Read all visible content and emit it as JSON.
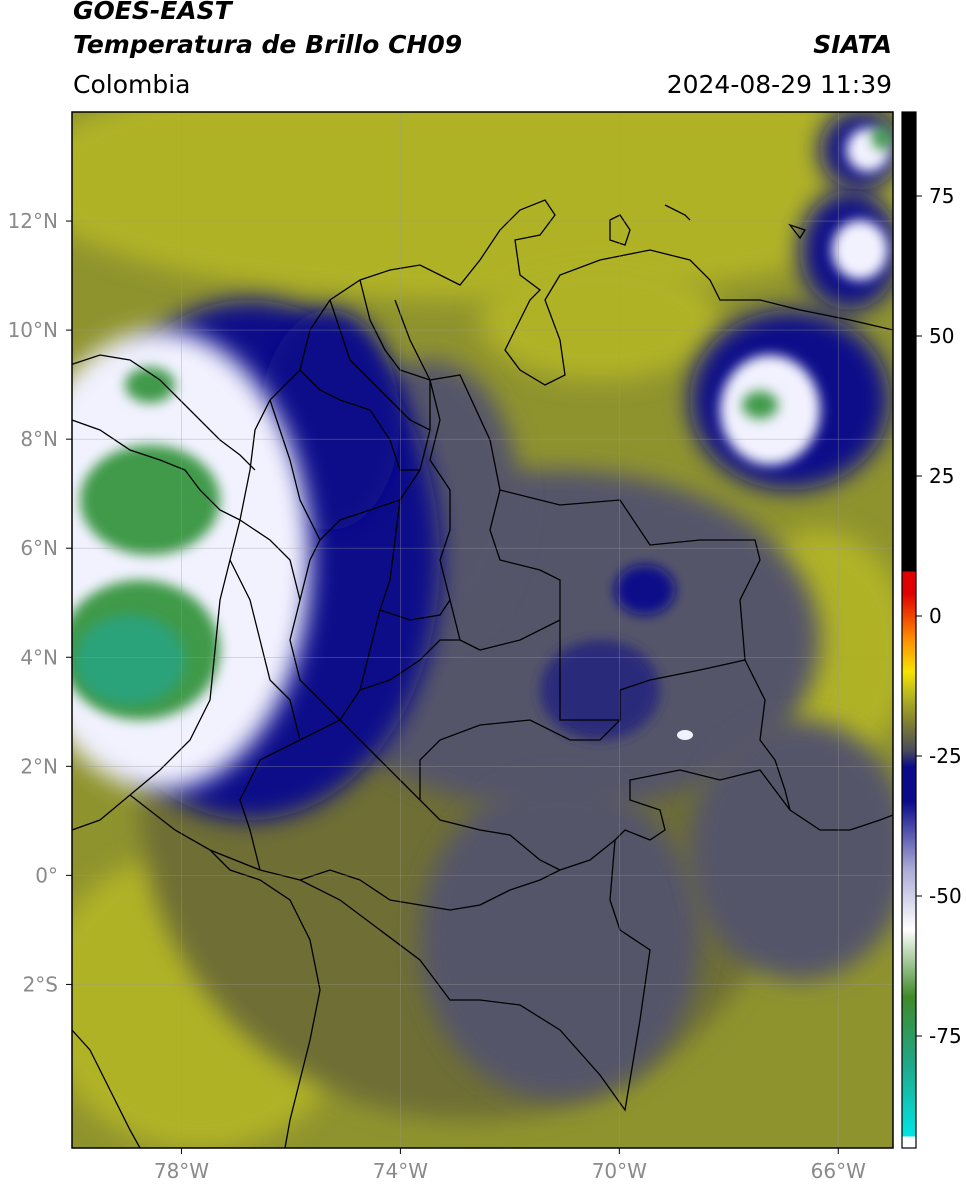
{
  "header": {
    "satellite": "GOES-EAST",
    "product": "Temperatura de Brillo CH09",
    "region": "Colombia",
    "agency": "SIATA",
    "datetime": "2024-08-29 11:39"
  },
  "map": {
    "lon_range": [
      -80,
      -65
    ],
    "lat_range": [
      -5,
      14
    ],
    "lon_ticks": [
      {
        "value": -78,
        "label": "78°W"
      },
      {
        "value": -74,
        "label": "74°W"
      },
      {
        "value": -70,
        "label": "70°W"
      },
      {
        "value": -66,
        "label": "66°W"
      }
    ],
    "lat_ticks": [
      {
        "value": 12,
        "label": "12°N"
      },
      {
        "value": 10,
        "label": "10°N"
      },
      {
        "value": 8,
        "label": "8°N"
      },
      {
        "value": 6,
        "label": "6°N"
      },
      {
        "value": 4,
        "label": "4°N"
      },
      {
        "value": 2,
        "label": "2°N"
      },
      {
        "value": 0,
        "label": "0°"
      },
      {
        "value": -2,
        "label": "2°S"
      }
    ],
    "gridlines": true
  },
  "colorbar": {
    "range": [
      -95,
      90
    ],
    "ticks": [
      {
        "value": 75,
        "label": "75"
      },
      {
        "value": 50,
        "label": "50"
      },
      {
        "value": 25,
        "label": "25"
      },
      {
        "value": 0,
        "label": "0"
      },
      {
        "value": -25,
        "label": "-25"
      },
      {
        "value": -50,
        "label": "-50"
      },
      {
        "value": -75,
        "label": "-75"
      }
    ],
    "colors": {
      "cyan": "#00e5e5",
      "teal": "#1fa888",
      "green": "#3f8a2a",
      "white": "#ffffff",
      "lavender": "#a9a9d6",
      "navy": "#0a0a8a",
      "slate": "#4a4a5a",
      "olive": "#8b8b2c",
      "yellow_olive": "#b8b820",
      "yellow": "#f5e400",
      "orange": "#ff8c00",
      "red": "#e00000",
      "black": "#000000"
    }
  },
  "imagery_colors": {
    "olive_bright": "#b0b228",
    "olive": "#8f932e",
    "olive_dark": "#6e6e34",
    "slate": "#54546a",
    "indigo": "#2a2a7a",
    "navy": "#10108a",
    "white": "#f2f2ff",
    "green": "#3f9a4a",
    "teal": "#2aa27a"
  }
}
